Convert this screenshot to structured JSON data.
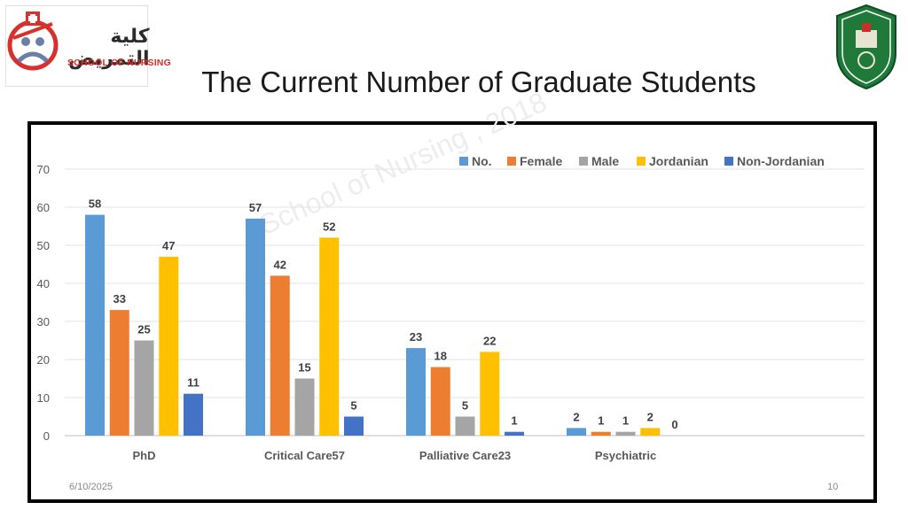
{
  "header": {
    "logo_left_arabic": "كلية التمريض",
    "logo_left_english": "SCHOOL OF NURSING",
    "title": "The Current Number of Graduate Students"
  },
  "watermark": "School of Nursing , 2018",
  "footer": {
    "date": "6/10/2025",
    "page": "10"
  },
  "chart_data": {
    "type": "bar",
    "title": "",
    "xlabel": "",
    "ylabel": "",
    "ylim": [
      0,
      70
    ],
    "yticks": [
      0,
      10,
      20,
      30,
      40,
      50,
      60,
      70
    ],
    "grid": true,
    "legend_position": "top-right",
    "categories": [
      "PhD",
      "Critical Care57",
      "Palliative Care23",
      "Psychiatric"
    ],
    "series": [
      {
        "name": "No.",
        "color": "#5b9bd5",
        "values": [
          58,
          57,
          23,
          2
        ]
      },
      {
        "name": "Female",
        "color": "#ed7d31",
        "values": [
          33,
          42,
          18,
          1
        ]
      },
      {
        "name": "Male",
        "color": "#a5a5a5",
        "values": [
          25,
          15,
          5,
          1
        ]
      },
      {
        "name": "Jordanian",
        "color": "#ffc000",
        "values": [
          47,
          52,
          22,
          2
        ]
      },
      {
        "name": "Non-Jordanian",
        "color": "#4472c4",
        "values": [
          11,
          5,
          1,
          0
        ]
      }
    ]
  }
}
